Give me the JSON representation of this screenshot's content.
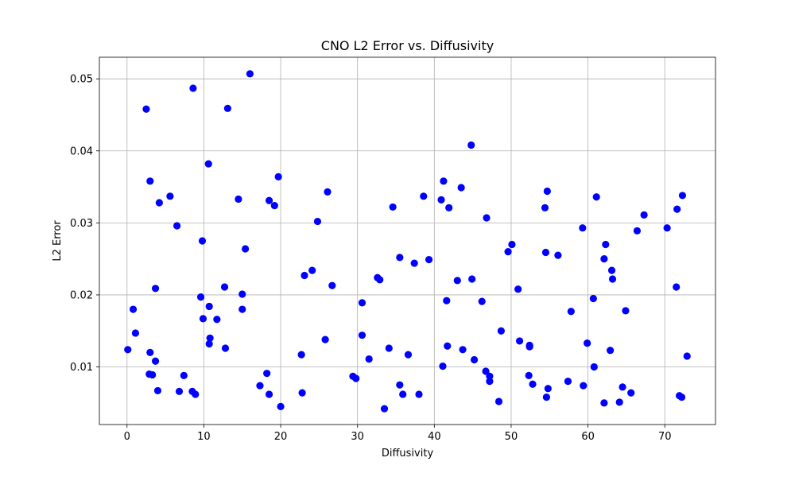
{
  "chart_data": {
    "type": "scatter",
    "title": "CNO L2 Error vs. Diffusivity",
    "xlabel": "Diffusivity",
    "ylabel": "L2 Error",
    "xlim": [
      -3.6,
      76.6
    ],
    "ylim": [
      0.002,
      0.053
    ],
    "xticks": [
      0,
      10,
      20,
      30,
      40,
      50,
      60,
      70
    ],
    "xtick_labels": [
      "0",
      "10",
      "20",
      "30",
      "40",
      "50",
      "60",
      "70"
    ],
    "yticks": [
      0.01,
      0.02,
      0.03,
      0.04,
      0.05
    ],
    "ytick_labels": [
      "0.01",
      "0.02",
      "0.03",
      "0.04",
      "0.05"
    ],
    "grid": true,
    "marker_color": "#0000ff",
    "points": [
      [
        0.1,
        0.0124
      ],
      [
        0.8,
        0.018
      ],
      [
        1.1,
        0.0147
      ],
      [
        2.5,
        0.0458
      ],
      [
        2.9,
        0.009
      ],
      [
        3.0,
        0.0358
      ],
      [
        3.0,
        0.012
      ],
      [
        3.3,
        0.0089
      ],
      [
        3.7,
        0.0108
      ],
      [
        3.7,
        0.0209
      ],
      [
        4.0,
        0.0067
      ],
      [
        4.2,
        0.0328
      ],
      [
        5.6,
        0.0337
      ],
      [
        6.5,
        0.0296
      ],
      [
        6.8,
        0.0066
      ],
      [
        7.4,
        0.0088
      ],
      [
        8.5,
        0.0066
      ],
      [
        8.6,
        0.0487
      ],
      [
        8.9,
        0.0062
      ],
      [
        9.6,
        0.0197
      ],
      [
        9.8,
        0.0275
      ],
      [
        9.9,
        0.0167
      ],
      [
        10.6,
        0.0382
      ],
      [
        10.7,
        0.0184
      ],
      [
        10.7,
        0.0132
      ],
      [
        10.8,
        0.014
      ],
      [
        11.7,
        0.0166
      ],
      [
        12.7,
        0.0211
      ],
      [
        12.8,
        0.0126
      ],
      [
        13.1,
        0.0459
      ],
      [
        14.5,
        0.0333
      ],
      [
        15.0,
        0.0201
      ],
      [
        15.0,
        0.018
      ],
      [
        15.4,
        0.0264
      ],
      [
        16.0,
        0.0507
      ],
      [
        17.3,
        0.0074
      ],
      [
        18.2,
        0.0091
      ],
      [
        18.5,
        0.0331
      ],
      [
        18.5,
        0.0062
      ],
      [
        19.2,
        0.0324
      ],
      [
        19.7,
        0.0364
      ],
      [
        20.0,
        0.0045
      ],
      [
        22.7,
        0.0117
      ],
      [
        22.8,
        0.0064
      ],
      [
        23.1,
        0.0227
      ],
      [
        24.1,
        0.0234
      ],
      [
        24.8,
        0.0302
      ],
      [
        25.8,
        0.0138
      ],
      [
        26.1,
        0.0343
      ],
      [
        26.7,
        0.0213
      ],
      [
        29.4,
        0.0087
      ],
      [
        29.8,
        0.0084
      ],
      [
        30.6,
        0.0189
      ],
      [
        30.6,
        0.0144
      ],
      [
        31.5,
        0.0111
      ],
      [
        32.6,
        0.0224
      ],
      [
        32.9,
        0.0221
      ],
      [
        33.5,
        0.0042
      ],
      [
        34.1,
        0.0126
      ],
      [
        34.6,
        0.0322
      ],
      [
        35.5,
        0.0252
      ],
      [
        35.5,
        0.0075
      ],
      [
        35.9,
        0.0062
      ],
      [
        36.6,
        0.0117
      ],
      [
        37.4,
        0.0244
      ],
      [
        38.0,
        0.0062
      ],
      [
        38.6,
        0.0337
      ],
      [
        39.3,
        0.0249
      ],
      [
        40.9,
        0.0332
      ],
      [
        41.1,
        0.0101
      ],
      [
        41.2,
        0.0358
      ],
      [
        41.6,
        0.0192
      ],
      [
        41.7,
        0.0129
      ],
      [
        41.9,
        0.0321
      ],
      [
        43.0,
        0.022
      ],
      [
        43.5,
        0.0349
      ],
      [
        43.7,
        0.0124
      ],
      [
        44.8,
        0.0408
      ],
      [
        44.9,
        0.0222
      ],
      [
        45.2,
        0.011
      ],
      [
        46.2,
        0.0191
      ],
      [
        46.7,
        0.0094
      ],
      [
        46.8,
        0.0307
      ],
      [
        47.2,
        0.0087
      ],
      [
        47.2,
        0.008
      ],
      [
        48.4,
        0.0052
      ],
      [
        48.7,
        0.015
      ],
      [
        49.6,
        0.026
      ],
      [
        50.1,
        0.027
      ],
      [
        50.9,
        0.0208
      ],
      [
        51.1,
        0.0136
      ],
      [
        52.3,
        0.0088
      ],
      [
        52.4,
        0.0128
      ],
      [
        52.4,
        0.013
      ],
      [
        52.8,
        0.0076
      ],
      [
        54.4,
        0.0321
      ],
      [
        54.5,
        0.0259
      ],
      [
        54.6,
        0.0058
      ],
      [
        54.7,
        0.0344
      ],
      [
        54.8,
        0.007
      ],
      [
        56.1,
        0.0255
      ],
      [
        57.4,
        0.008
      ],
      [
        57.8,
        0.0177
      ],
      [
        59.3,
        0.0293
      ],
      [
        59.4,
        0.0074
      ],
      [
        59.9,
        0.0133
      ],
      [
        60.7,
        0.0195
      ],
      [
        60.8,
        0.01
      ],
      [
        61.1,
        0.0336
      ],
      [
        62.1,
        0.005
      ],
      [
        62.1,
        0.025
      ],
      [
        62.3,
        0.027
      ],
      [
        62.9,
        0.0123
      ],
      [
        63.1,
        0.0234
      ],
      [
        63.2,
        0.0222
      ],
      [
        64.1,
        0.0051
      ],
      [
        64.5,
        0.0072
      ],
      [
        64.9,
        0.0178
      ],
      [
        65.6,
        0.0064
      ],
      [
        66.4,
        0.0289
      ],
      [
        67.3,
        0.0311
      ],
      [
        70.3,
        0.0293
      ],
      [
        71.5,
        0.0211
      ],
      [
        71.6,
        0.0319
      ],
      [
        71.9,
        0.006
      ],
      [
        72.2,
        0.0058
      ],
      [
        72.3,
        0.0338
      ],
      [
        72.9,
        0.0115
      ]
    ]
  }
}
